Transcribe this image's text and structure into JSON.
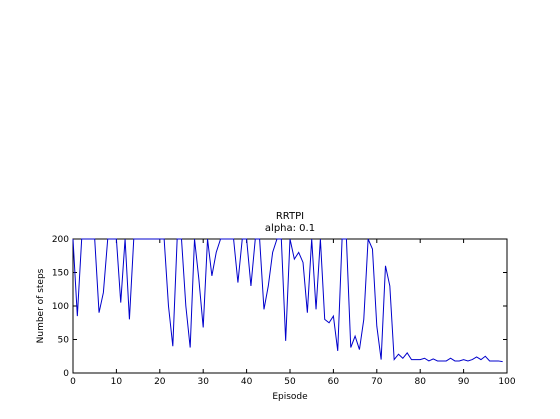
{
  "chart_data": {
    "type": "line",
    "title": "RRTPI",
    "subtitle": "alpha: 0.1",
    "xlabel": "Episode",
    "ylabel": "Number of steps",
    "xlim": [
      0,
      100
    ],
    "ylim": [
      0,
      200
    ],
    "xticks": [
      0,
      10,
      20,
      30,
      40,
      50,
      60,
      70,
      80,
      90,
      100
    ],
    "yticks": [
      0,
      50,
      100,
      150,
      200
    ],
    "grid": false,
    "line_color": "#0000cc",
    "x": [
      0,
      1,
      2,
      3,
      4,
      5,
      6,
      7,
      8,
      9,
      10,
      11,
      12,
      13,
      14,
      15,
      16,
      17,
      18,
      19,
      20,
      21,
      22,
      23,
      24,
      25,
      26,
      27,
      28,
      29,
      30,
      31,
      32,
      33,
      34,
      35,
      36,
      37,
      38,
      39,
      40,
      41,
      42,
      43,
      44,
      45,
      46,
      47,
      48,
      49,
      50,
      51,
      52,
      53,
      54,
      55,
      56,
      57,
      58,
      59,
      60,
      61,
      62,
      63,
      64,
      65,
      66,
      67,
      68,
      69,
      70,
      71,
      72,
      73,
      74,
      75,
      76,
      77,
      78,
      79,
      80,
      81,
      82,
      83,
      84,
      85,
      86,
      87,
      88,
      89,
      90,
      91,
      92,
      93,
      94,
      95,
      96,
      97,
      98,
      99
    ],
    "y": [
      200,
      85,
      200,
      200,
      200,
      200,
      90,
      120,
      200,
      200,
      200,
      105,
      200,
      80,
      200,
      200,
      200,
      200,
      200,
      200,
      200,
      200,
      100,
      40,
      200,
      200,
      100,
      38,
      200,
      140,
      68,
      200,
      145,
      180,
      200,
      200,
      200,
      200,
      135,
      200,
      200,
      130,
      200,
      200,
      95,
      130,
      180,
      200,
      200,
      48,
      200,
      170,
      180,
      165,
      90,
      200,
      95,
      200,
      80,
      75,
      85,
      33,
      200,
      200,
      38,
      55,
      35,
      80,
      200,
      185,
      70,
      20,
      160,
      130,
      20,
      28,
      22,
      30,
      20,
      20,
      20,
      22,
      18,
      21,
      18,
      18,
      18,
      22,
      18,
      18,
      20,
      18,
      20,
      24,
      20,
      25,
      18,
      18,
      18,
      17
    ]
  }
}
